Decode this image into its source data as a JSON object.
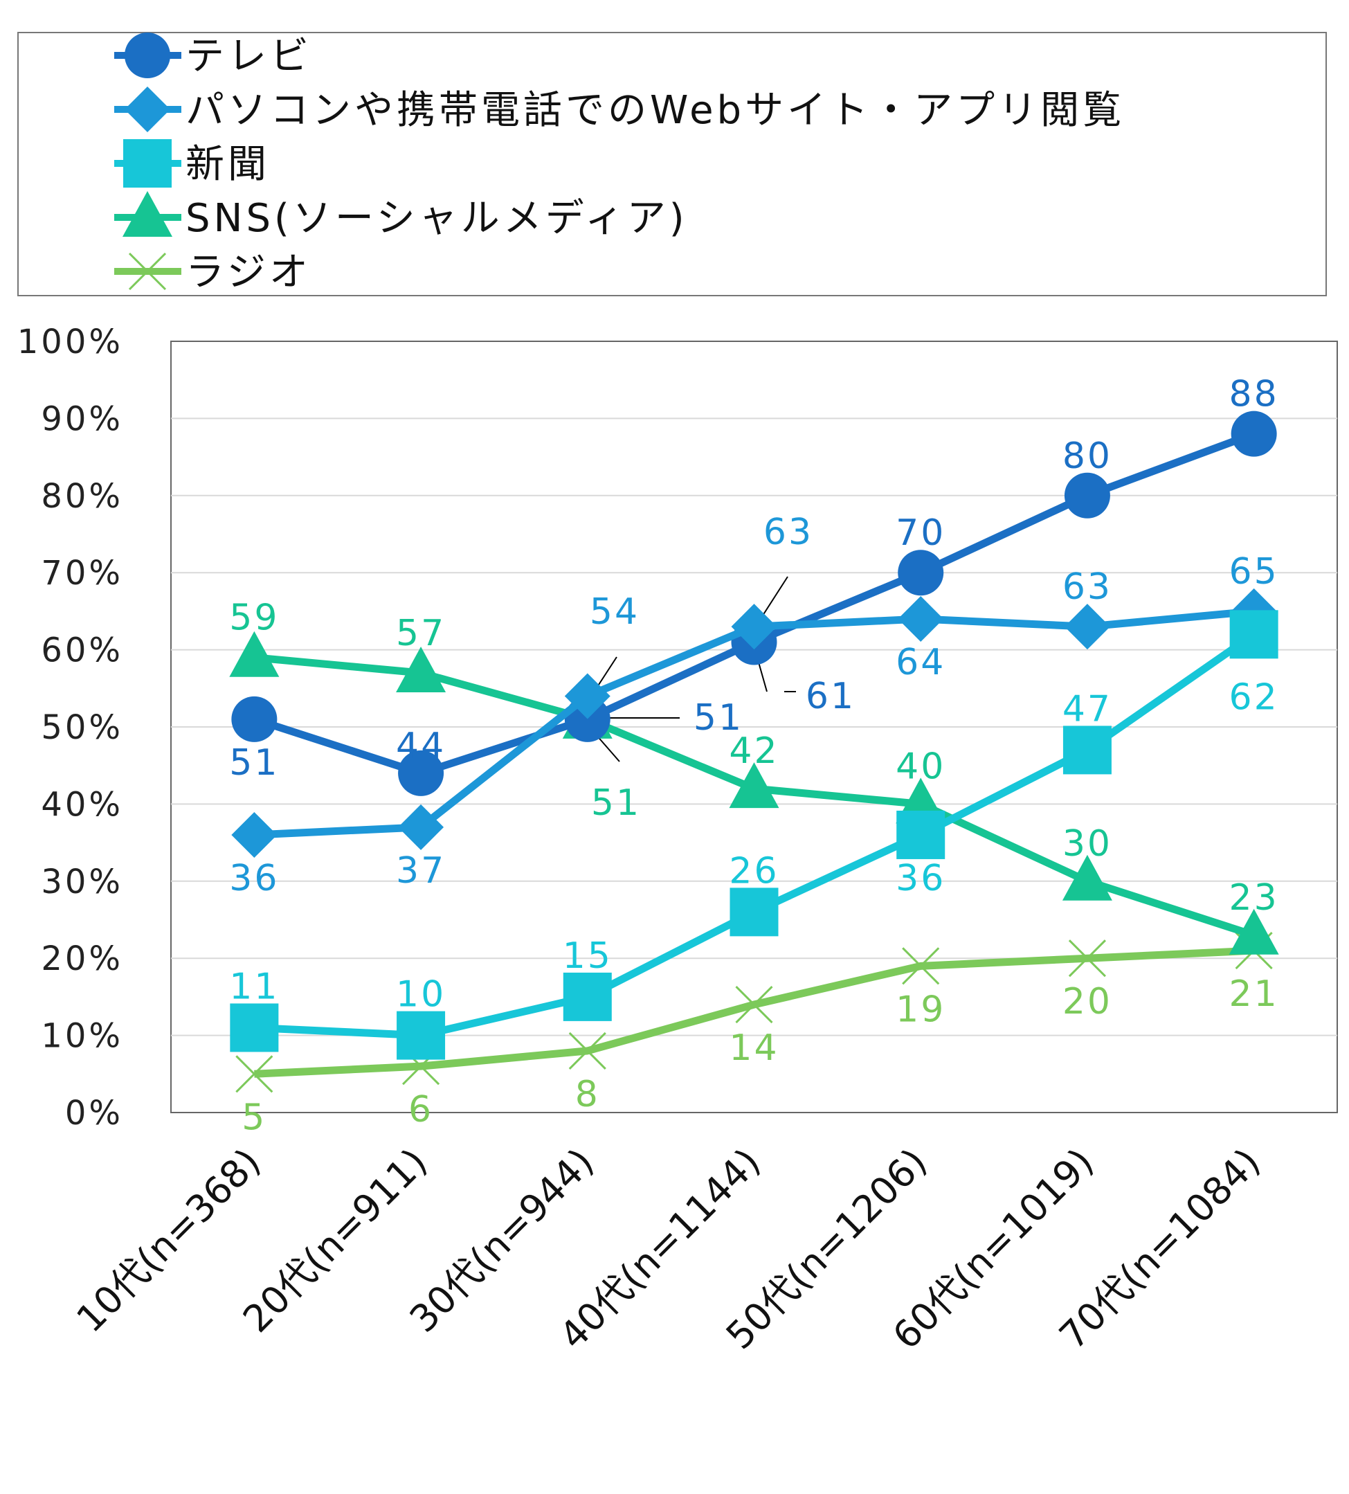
{
  "chart_data": {
    "type": "line",
    "title": "",
    "xlabel": "",
    "ylabel": "",
    "categories": [
      "10代(n=368)",
      "20代(n=911)",
      "30代(n=944)",
      "40代(n=1144)",
      "50代(n=1206)",
      "60代(n=1019)",
      "70代(n=1084)"
    ],
    "ylim": [
      0,
      100
    ],
    "yticks": [
      "0%",
      "10%",
      "20%",
      "30%",
      "40%",
      "50%",
      "60%",
      "70%",
      "80%",
      "90%",
      "100%"
    ],
    "grid": true,
    "legend_position": "top",
    "series": [
      {
        "name": "テレビ",
        "values": [
          51,
          44,
          51,
          61,
          70,
          80,
          88
        ],
        "color": "#1b6fc4",
        "marker": "circle"
      },
      {
        "name": "パソコンや携帯電話でのWebサイト・アプリ閲覧",
        "values": [
          36,
          37,
          54,
          63,
          64,
          63,
          65
        ],
        "color": "#1d97d8",
        "marker": "diamond"
      },
      {
        "name": "新聞",
        "values": [
          11,
          10,
          15,
          26,
          36,
          47,
          62
        ],
        "color": "#17c6d8",
        "marker": "square"
      },
      {
        "name": "SNS(ソーシャルメディア)",
        "values": [
          59,
          57,
          51,
          42,
          40,
          30,
          23
        ],
        "color": "#16c493",
        "marker": "triangle"
      },
      {
        "name": "ラジオ",
        "values": [
          5,
          6,
          8,
          14,
          19,
          20,
          21
        ],
        "color": "#7cc95a",
        "marker": "x"
      }
    ]
  }
}
